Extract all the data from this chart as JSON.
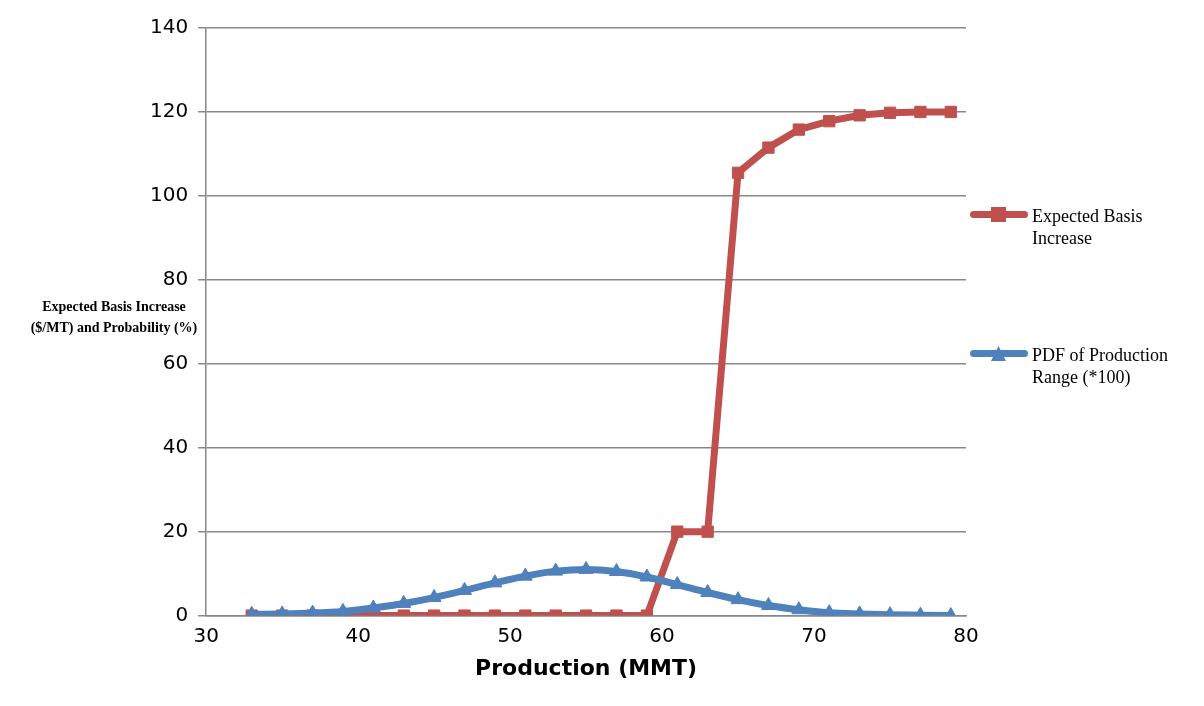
{
  "chart_data": {
    "type": "line",
    "xlabel": "Production (MMT)",
    "ylabel": "Expected Basis Increase ($/MT) and Probability (%)",
    "x": [
      33,
      35,
      37,
      39,
      41,
      43,
      45,
      47,
      49,
      51,
      53,
      55,
      57,
      59,
      61,
      63,
      65,
      67,
      69,
      71,
      73,
      75,
      77,
      79
    ],
    "series": [
      {
        "name": "Expected Basis Increase",
        "color": "#c0504d",
        "marker": "square",
        "values": [
          0,
          0,
          0,
          0,
          0,
          0,
          0,
          0,
          0,
          0,
          0,
          0,
          0,
          0,
          20,
          20,
          105.5,
          111.5,
          115.8,
          117.8,
          119.2,
          119.8,
          120,
          120
        ]
      },
      {
        "name": "PDF of Production Range (*100)",
        "color": "#4f81bd",
        "marker": "triangle",
        "values": [
          0.3,
          0.4,
          0.6,
          1.0,
          1.8,
          2.9,
          4.3,
          6.0,
          7.8,
          9.4,
          10.6,
          11.0,
          10.5,
          9.2,
          7.4,
          5.5,
          3.8,
          2.4,
          1.4,
          0.7,
          0.4,
          0.2,
          0.1,
          0
        ]
      }
    ],
    "xlim": [
      30,
      80
    ],
    "xticks": [
      30,
      40,
      50,
      60,
      70,
      80
    ],
    "ylim": [
      0,
      140
    ],
    "yticks": [
      0,
      20,
      40,
      60,
      80,
      100,
      120,
      140
    ],
    "grid": "y",
    "legend": "right",
    "line_style": "solid"
  }
}
